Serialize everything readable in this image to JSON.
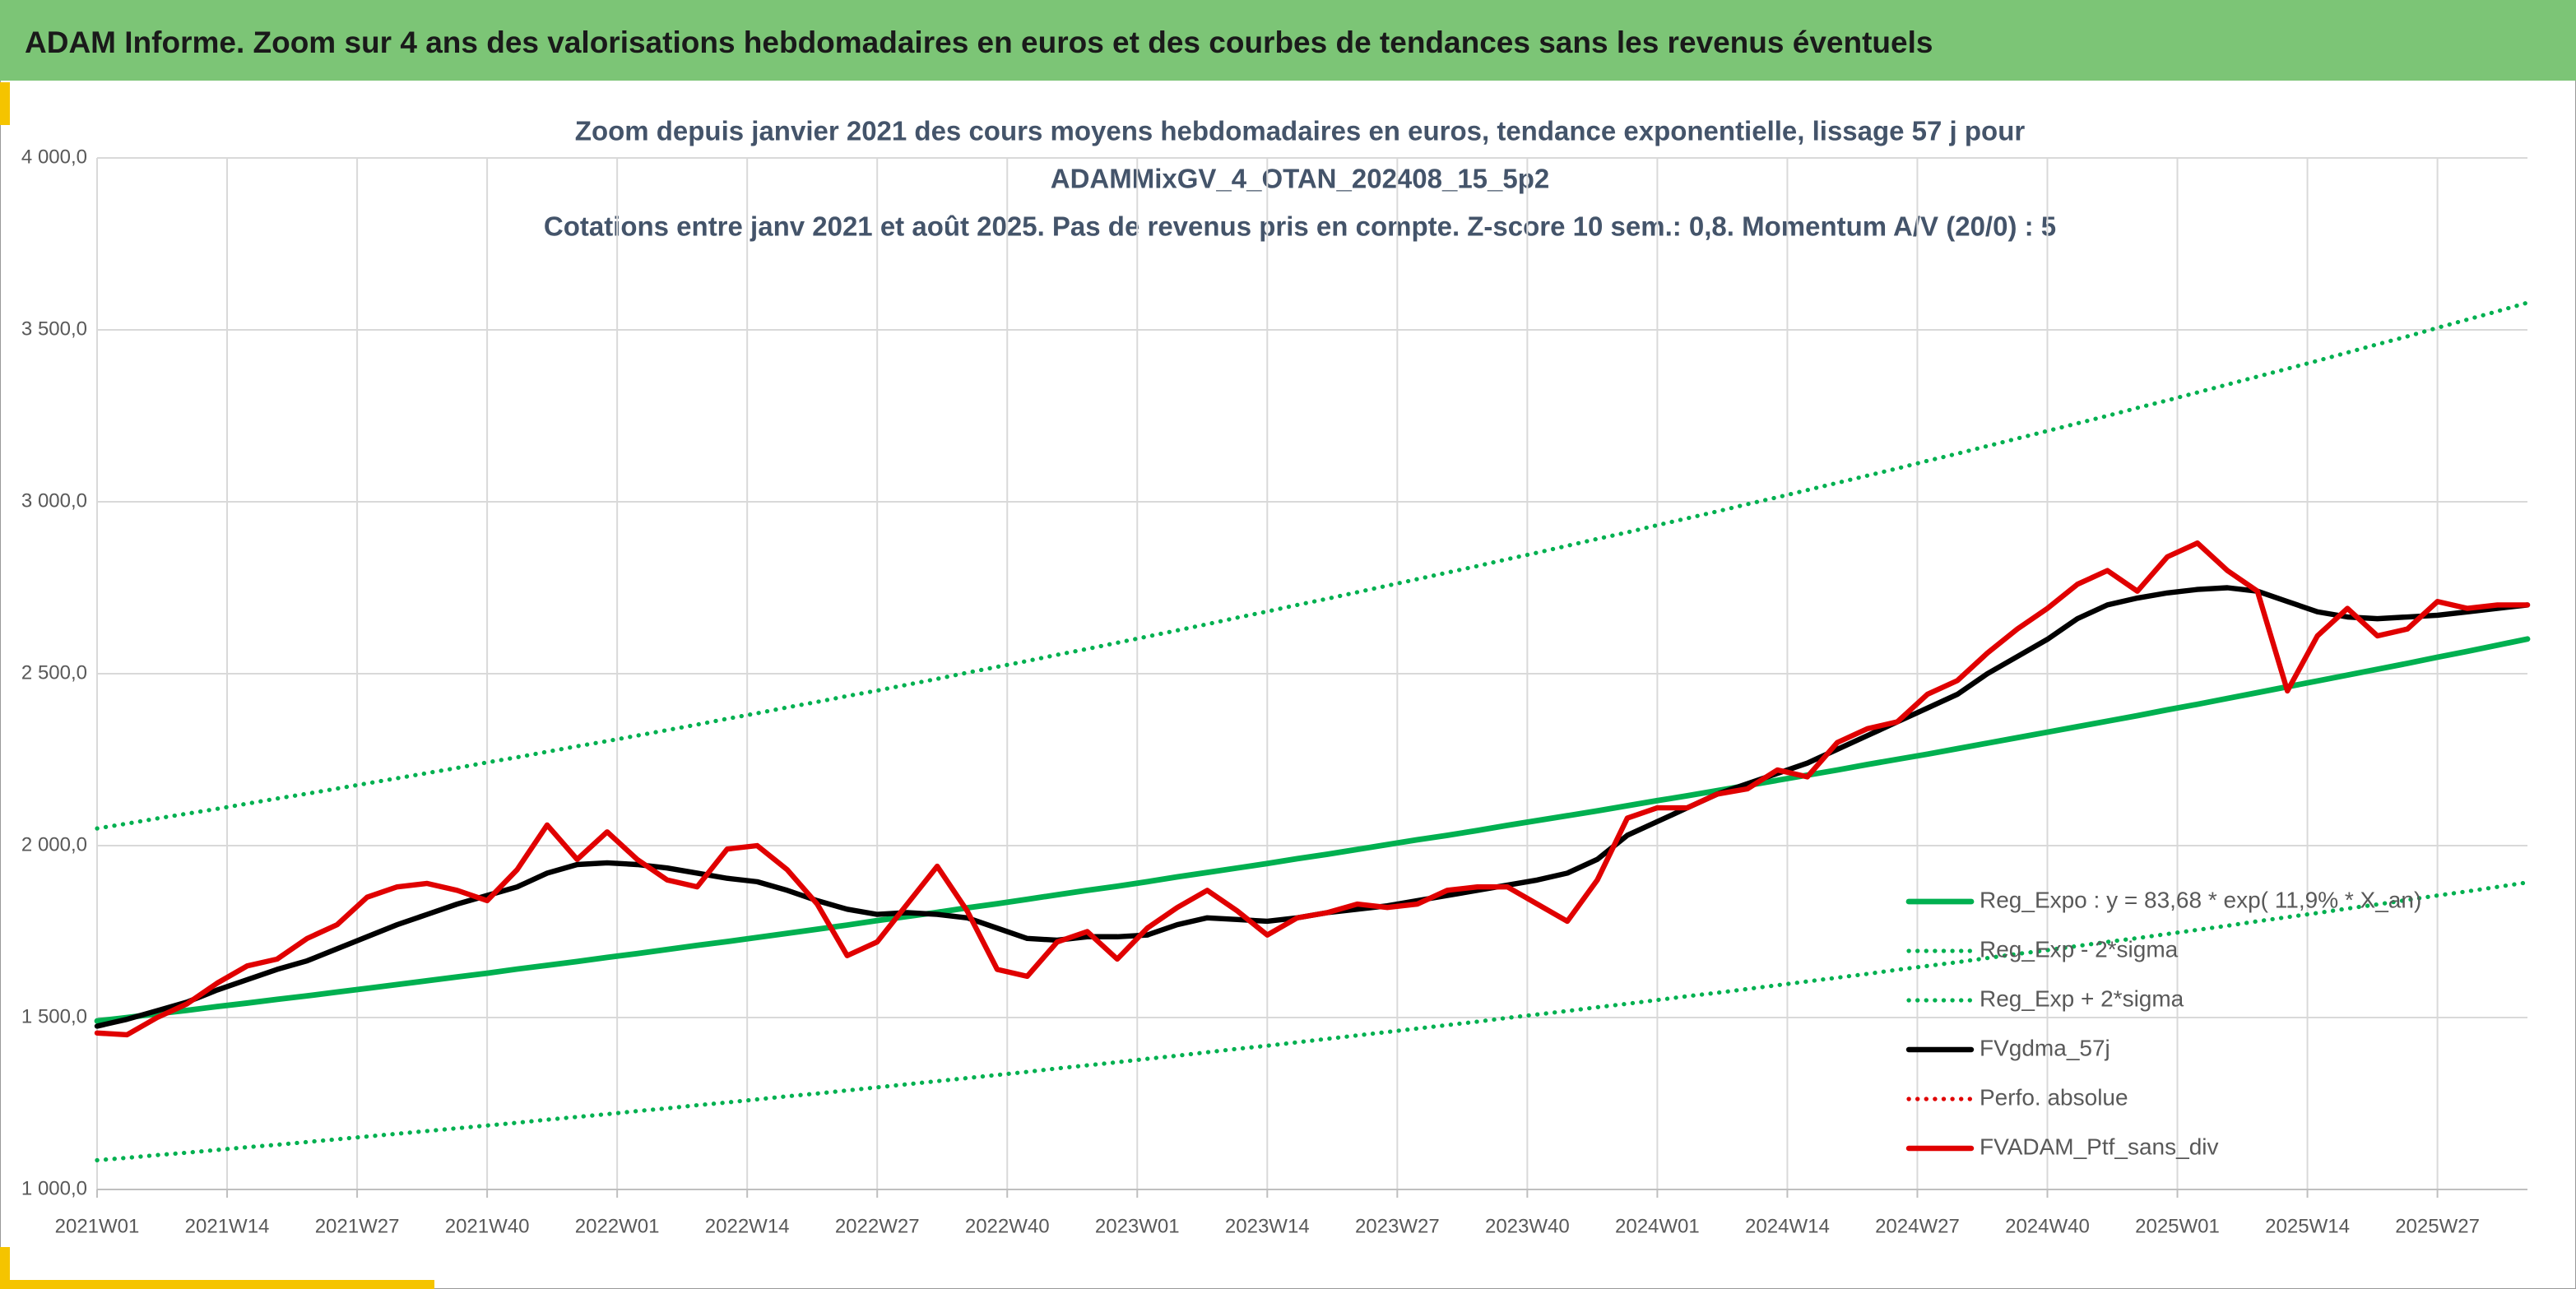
{
  "header": {
    "title": "ADAM Informe. Zoom sur 4 ans des valorisations hebdomadaires en euros et des courbes de tendances sans les revenus éventuels"
  },
  "chart_data": {
    "type": "line",
    "title": [
      "Zoom depuis janvier 2021 des cours moyens hebdomadaires en euros, tendance exponentielle, lissage 57 j pour",
      "ADAMMixGV_4_OTAN_202408_15_5p2",
      "Cotations entre janv 2021 et août 2025. Pas de revenus pris en compte. Z-score 10 sem.: 0,8. Momentum A/V (20/0) : 5"
    ],
    "x": [
      0,
      3,
      6,
      9,
      12,
      15,
      18,
      21,
      24,
      27,
      30,
      33,
      36,
      39,
      42,
      45,
      48,
      51,
      54,
      57,
      60,
      63,
      66,
      69,
      72,
      75,
      78,
      81,
      84,
      87,
      90,
      93,
      96,
      99,
      102,
      105,
      108,
      111,
      114,
      117,
      120,
      123,
      126,
      129,
      132,
      135,
      138,
      141,
      144,
      147,
      150,
      153,
      156,
      159,
      162,
      165,
      168,
      171,
      174,
      177,
      180,
      183,
      186,
      189,
      192,
      195,
      198,
      201,
      204,
      207,
      210,
      213,
      216,
      219,
      222,
      225,
      228,
      231,
      234,
      237,
      240,
      243
    ],
    "xlim": [
      0,
      243
    ],
    "xticks": [
      {
        "value": 0,
        "label": "2021W01"
      },
      {
        "value": 13,
        "label": "2021W14"
      },
      {
        "value": 26,
        "label": "2021W27"
      },
      {
        "value": 39,
        "label": "2021W40"
      },
      {
        "value": 52,
        "label": "2022W01"
      },
      {
        "value": 65,
        "label": "2022W14"
      },
      {
        "value": 78,
        "label": "2022W27"
      },
      {
        "value": 91,
        "label": "2022W40"
      },
      {
        "value": 104,
        "label": "2023W01"
      },
      {
        "value": 117,
        "label": "2023W14"
      },
      {
        "value": 130,
        "label": "2023W27"
      },
      {
        "value": 143,
        "label": "2023W40"
      },
      {
        "value": 156,
        "label": "2024W01"
      },
      {
        "value": 169,
        "label": "2024W14"
      },
      {
        "value": 182,
        "label": "2024W27"
      },
      {
        "value": 195,
        "label": "2024W40"
      },
      {
        "value": 208,
        "label": "2025W01"
      },
      {
        "value": 221,
        "label": "2025W14"
      },
      {
        "value": 234,
        "label": "2025W27"
      }
    ],
    "ylim": [
      1000,
      4000
    ],
    "yticks": [
      {
        "value": 1000,
        "label": "1 000,0"
      },
      {
        "value": 1500,
        "label": "1 500,0"
      },
      {
        "value": 2000,
        "label": "2 000,0"
      },
      {
        "value": 2500,
        "label": "2 500,0"
      },
      {
        "value": 3000,
        "label": "3 000,0"
      },
      {
        "value": 3500,
        "label": "3 500,0"
      },
      {
        "value": 4000,
        "label": "4 000,0"
      }
    ],
    "grid": true,
    "legend": "right",
    "series": [
      {
        "name": "Reg_Expo : y = 83,68 * exp( 11,9% * X_an)",
        "color": "#00b050",
        "dash": "solid",
        "values": [
          1490,
          1500,
          1511,
          1521,
          1532,
          1542,
          1553,
          1563,
          1574,
          1585,
          1596,
          1607,
          1618,
          1629,
          1641,
          1652,
          1663,
          1675,
          1686,
          1698,
          1710,
          1721,
          1733,
          1745,
          1757,
          1769,
          1782,
          1794,
          1806,
          1819,
          1831,
          1844,
          1857,
          1870,
          1882,
          1895,
          1909,
          1922,
          1935,
          1948,
          1962,
          1975,
          1989,
          2003,
          2017,
          2030,
          2044,
          2059,
          2073,
          2087,
          2101,
          2116,
          2131,
          2145,
          2160,
          2175,
          2190,
          2205,
          2220,
          2236,
          2251,
          2266,
          2282,
          2298,
          2314,
          2330,
          2346,
          2362,
          2378,
          2395,
          2411,
          2428,
          2445,
          2462,
          2479,
          2496,
          2513,
          2530,
          2548,
          2565,
          2583,
          2601
        ]
      },
      {
        "name": "Reg_Exp - 2*sigma",
        "color": "#00b050",
        "dash": "dotted",
        "values": [
          1085,
          1092,
          1100,
          1107,
          1115,
          1123,
          1130,
          1138,
          1146,
          1154,
          1162,
          1170,
          1178,
          1186,
          1194,
          1203,
          1211,
          1219,
          1228,
          1236,
          1245,
          1253,
          1262,
          1271,
          1279,
          1288,
          1297,
          1306,
          1315,
          1324,
          1333,
          1342,
          1352,
          1361,
          1370,
          1380,
          1389,
          1399,
          1409,
          1418,
          1428,
          1438,
          1448,
          1458,
          1468,
          1478,
          1488,
          1499,
          1509,
          1519,
          1530,
          1540,
          1551,
          1562,
          1572,
          1583,
          1594,
          1605,
          1616,
          1627,
          1639,
          1650,
          1661,
          1673,
          1685,
          1696,
          1708,
          1720,
          1731,
          1743,
          1755,
          1767,
          1780,
          1792,
          1804,
          1817,
          1829,
          1842,
          1855,
          1867,
          1880,
          1893
        ]
      },
      {
        "name": "Reg_Exp + 2*sigma",
        "color": "#00b050",
        "dash": "dotted",
        "values": [
          2050,
          2064,
          2079,
          2093,
          2107,
          2122,
          2137,
          2151,
          2166,
          2181,
          2196,
          2211,
          2226,
          2242,
          2257,
          2273,
          2289,
          2304,
          2320,
          2336,
          2352,
          2369,
          2385,
          2402,
          2418,
          2435,
          2451,
          2468,
          2485,
          2503,
          2520,
          2537,
          2555,
          2572,
          2590,
          2608,
          2626,
          2644,
          2663,
          2681,
          2700,
          2718,
          2737,
          2756,
          2775,
          2794,
          2813,
          2833,
          2852,
          2872,
          2892,
          2911,
          2932,
          2952,
          2972,
          2993,
          3013,
          3034,
          3055,
          3076,
          3097,
          3119,
          3140,
          3162,
          3184,
          3206,
          3228,
          3250,
          3273,
          3295,
          3318,
          3341,
          3364,
          3387,
          3410,
          3434,
          3458,
          3481,
          3506,
          3530,
          3554,
          3579
        ]
      },
      {
        "name": "FVgdma_57j",
        "color": "#000000",
        "dash": "solid",
        "values": [
          1475,
          1495,
          1520,
          1545,
          1580,
          1610,
          1640,
          1665,
          1700,
          1735,
          1770,
          1800,
          1830,
          1855,
          1880,
          1920,
          1945,
          1950,
          1945,
          1935,
          1920,
          1905,
          1895,
          1870,
          1840,
          1815,
          1800,
          1805,
          1800,
          1790,
          1760,
          1730,
          1725,
          1735,
          1735,
          1740,
          1770,
          1790,
          1785,
          1780,
          1790,
          1805,
          1815,
          1825,
          1840,
          1855,
          1870,
          1885,
          1900,
          1920,
          1960,
          2030,
          2070,
          2110,
          2150,
          2180,
          2210,
          2240,
          2280,
          2320,
          2360,
          2400,
          2440,
          2500,
          2550,
          2600,
          2660,
          2700,
          2720,
          2735,
          2745,
          2750,
          2740,
          2710,
          2680,
          2665,
          2660,
          2665,
          2670,
          2680,
          2690,
          2700
        ]
      },
      {
        "name": "Perfo. absolue",
        "color": "#e00000",
        "dash": "dotted",
        "values": [
          1455,
          1450,
          1500,
          1540,
          1600,
          1650,
          1670,
          1730,
          1770,
          1850,
          1880,
          1890,
          1870,
          1840,
          1930,
          2060,
          1960,
          2040,
          1960,
          1900,
          1880,
          1990,
          2000,
          1930,
          1830,
          1680,
          1720,
          1830,
          1940,
          1810,
          1640,
          1620,
          1720,
          1750,
          1670,
          1760,
          1820,
          1870,
          1810,
          1740,
          1790,
          1805,
          1830,
          1820,
          1830,
          1870,
          1880,
          1880,
          1830,
          1780,
          1900,
          2080,
          2110,
          2110,
          2150,
          2165,
          2220,
          2200,
          2300,
          2340,
          2360,
          2440,
          2480,
          2560,
          2630,
          2690,
          2760,
          2800,
          2740,
          2840,
          2880,
          2800,
          2740,
          2450,
          2610,
          2690,
          2610,
          2630,
          2710,
          2690,
          2700,
          2700
        ]
      },
      {
        "name": "FVADAM_Ptf_sans_div",
        "color": "#e00000",
        "dash": "solid",
        "values": [
          1455,
          1450,
          1500,
          1540,
          1600,
          1650,
          1670,
          1730,
          1770,
          1850,
          1880,
          1890,
          1870,
          1840,
          1930,
          2060,
          1960,
          2040,
          1960,
          1900,
          1880,
          1990,
          2000,
          1930,
          1830,
          1680,
          1720,
          1830,
          1940,
          1810,
          1640,
          1620,
          1720,
          1750,
          1670,
          1760,
          1820,
          1870,
          1810,
          1740,
          1790,
          1805,
          1830,
          1820,
          1830,
          1870,
          1880,
          1880,
          1830,
          1780,
          1900,
          2080,
          2110,
          2110,
          2150,
          2165,
          2220,
          2200,
          2300,
          2340,
          2360,
          2440,
          2480,
          2560,
          2630,
          2690,
          2760,
          2800,
          2740,
          2840,
          2880,
          2800,
          2740,
          2450,
          2610,
          2690,
          2610,
          2630,
          2710,
          2690,
          2700,
          2700
        ]
      }
    ]
  }
}
